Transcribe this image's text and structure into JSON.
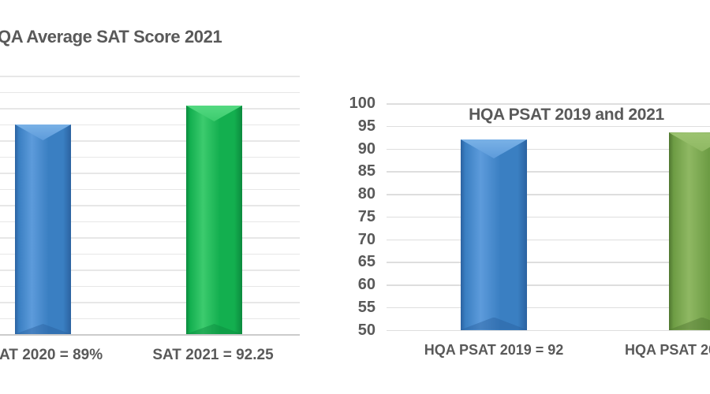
{
  "canvas": {
    "background": "#FFFFFF",
    "text_color": "#595959",
    "gridline_color": "#E3E3E3"
  },
  "colors": {
    "blue": {
      "highlight": "#79B1E6",
      "light": "#5D9BDB",
      "mid": "#3A7FC2",
      "dark": "#2B62A0"
    },
    "green": {
      "highlight": "#54D981",
      "light": "#3CCB6E",
      "mid": "#13AF4F",
      "dark": "#0C8A3E"
    },
    "olive": {
      "highlight": "#9DC471",
      "light": "#8FB863",
      "mid": "#6D9C44",
      "dark": "#4F7630"
    }
  },
  "chart_data": [
    {
      "type": "bar",
      "title": "QA Average SAT Score 2021",
      "categories": [
        "AT 2020 = 89%",
        "SAT 2021 = 92.25"
      ],
      "values": [
        89,
        92.25
      ],
      "bar_color_keys": [
        "blue",
        "green"
      ],
      "xlabel": "",
      "ylabel": "",
      "ylim": [
        53,
        97.4
      ],
      "gridline_count": 17,
      "grid": true,
      "legend": "none",
      "notes": "Chart cropped at left edge of screenshot: title first letter, y-axis labels and part of first category label are cut off. ylim estimated from bar tops vs gridlines."
    },
    {
      "type": "bar",
      "title": "HQA PSAT 2019 and 2021",
      "categories": [
        "HQA PSAT 2019 = 92",
        "HQA PSAT 20"
      ],
      "values": [
        92,
        93.5
      ],
      "bar_color_keys": [
        "blue",
        "olive"
      ],
      "xlabel": "",
      "ylabel": "",
      "ylim": [
        50,
        100
      ],
      "ytick_labels": [
        "100",
        "95",
        "90",
        "85",
        "80",
        "75",
        "70",
        "65",
        "60",
        "55",
        "50"
      ],
      "ytick_step": 5,
      "grid": true,
      "legend": "none",
      "notes": "Chart cropped at right edge of screenshot: second bar and its category label are cut off. Second value (93.5) estimated from gridlines."
    }
  ]
}
